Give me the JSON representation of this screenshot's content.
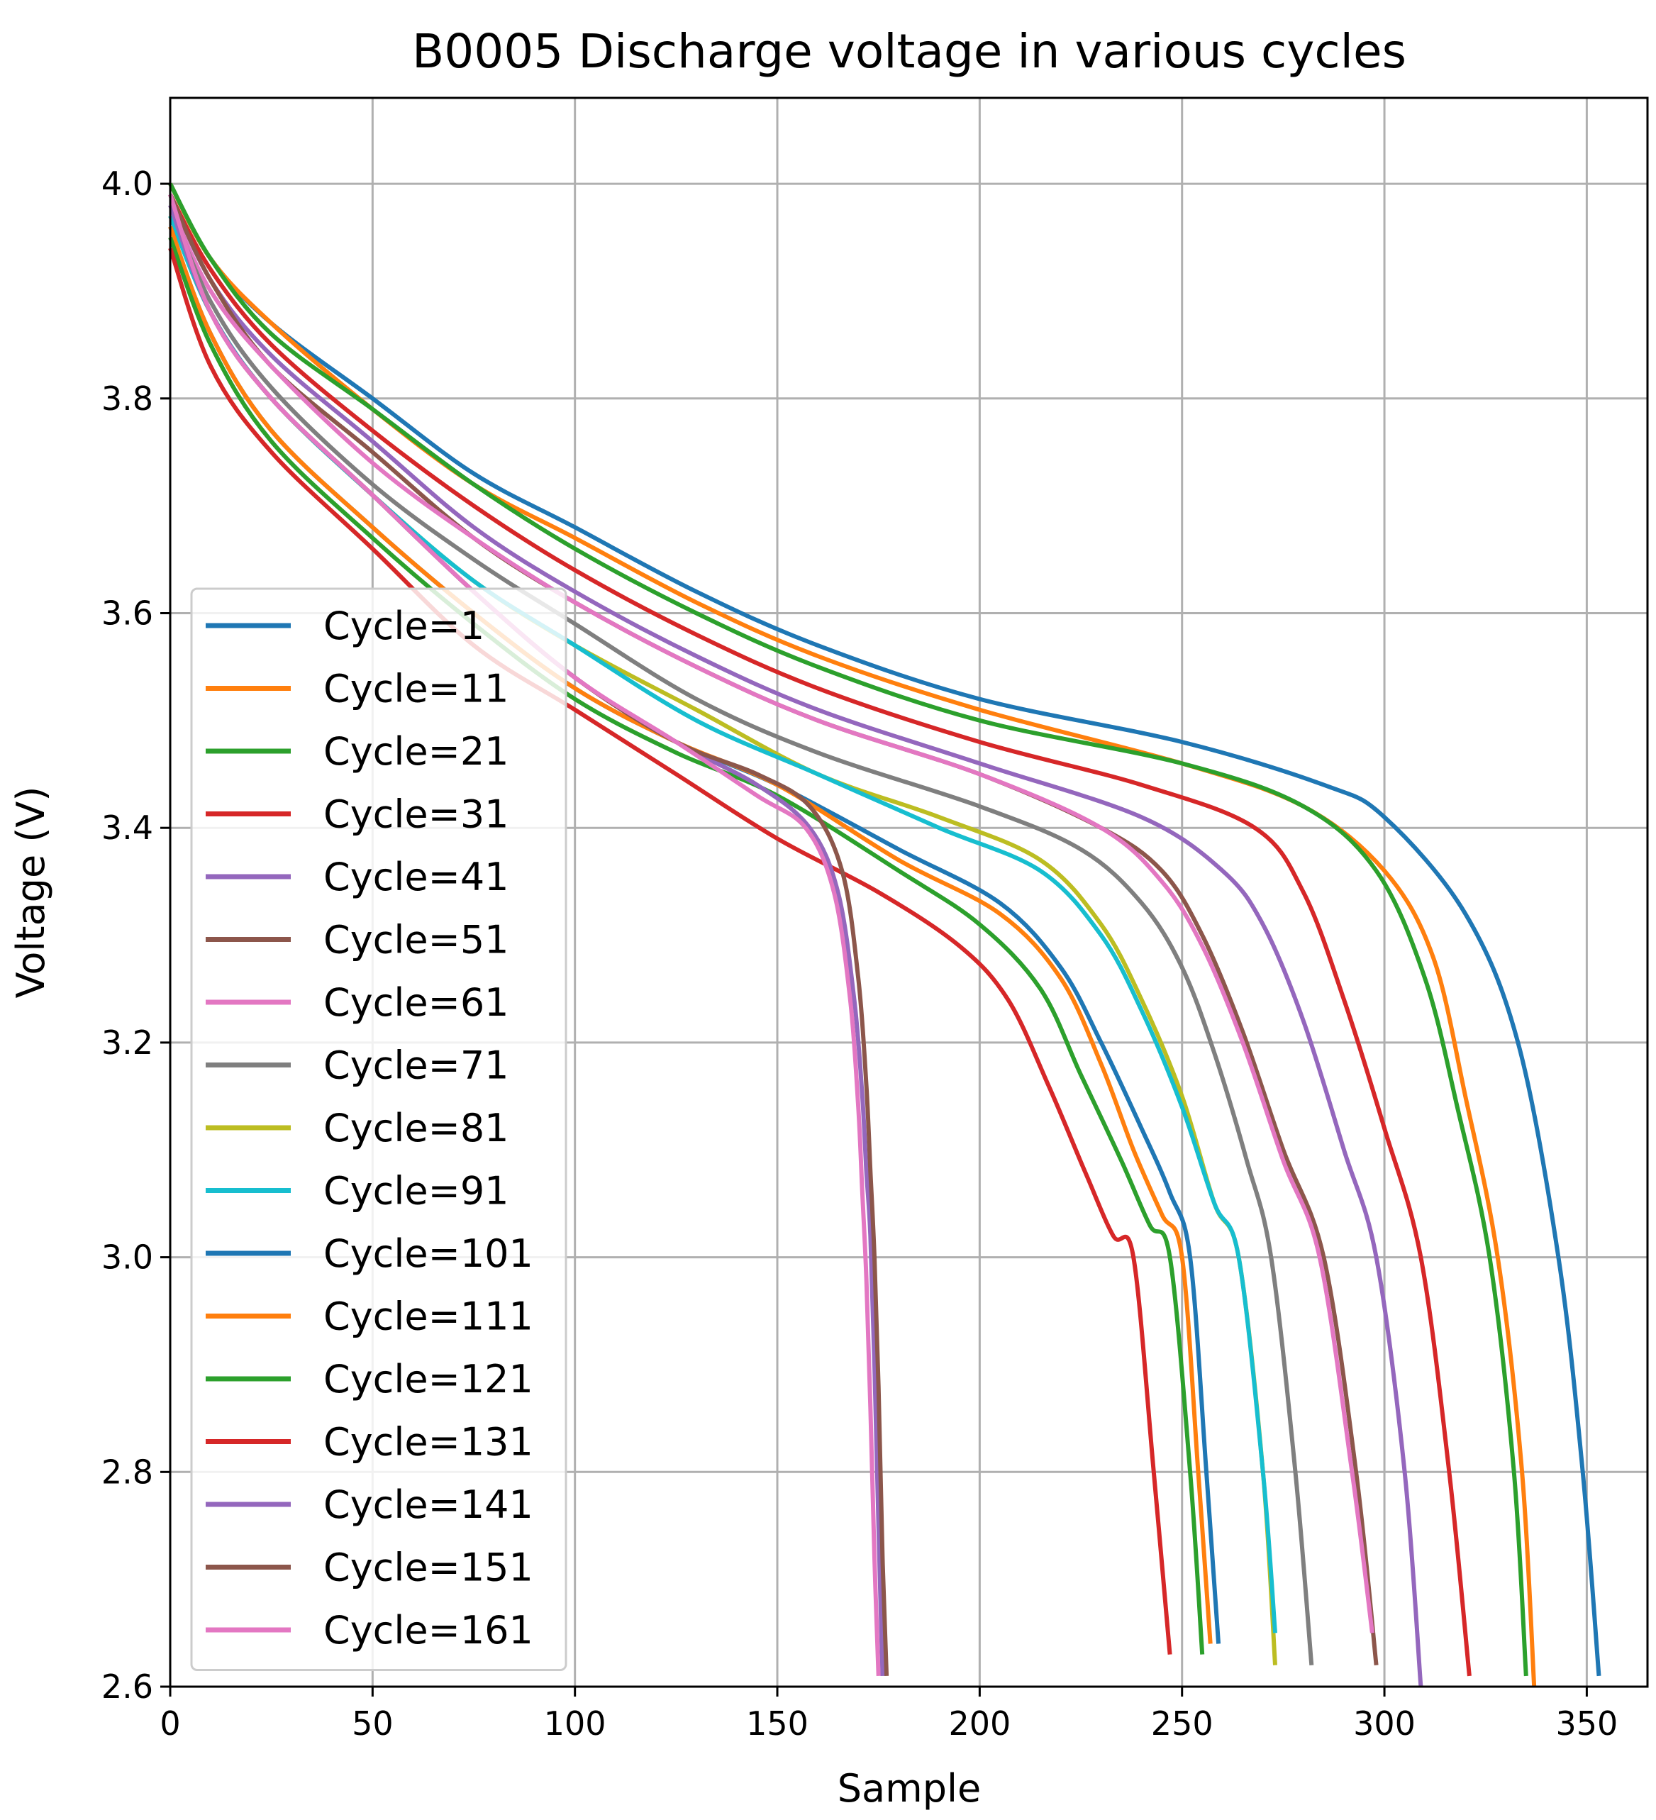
{
  "chart_data": {
    "type": "line",
    "title": "B0005 Discharge voltage in various cycles",
    "xlabel": "Sample",
    "ylabel": "Voltage (V)",
    "xlim": [
      0,
      365
    ],
    "ylim": [
      2.6,
      4.08
    ],
    "xticks": [
      0,
      50,
      100,
      150,
      200,
      250,
      300,
      350
    ],
    "yticks": [
      2.6,
      2.8,
      3.0,
      3.2,
      3.4,
      3.6,
      3.8,
      4.0
    ],
    "xtick_labels": [
      "0",
      "50",
      "100",
      "150",
      "200",
      "250",
      "300",
      "350"
    ],
    "ytick_labels": [
      "2.6",
      "2.8",
      "3.0",
      "3.2",
      "3.4",
      "3.6",
      "3.8",
      "4.0"
    ],
    "grid": true,
    "legend_position": "center-left",
    "series": [
      {
        "name": "Cycle=1",
        "color": "#1f77b4",
        "x": [
          0,
          10,
          25,
          50,
          75,
          100,
          130,
          160,
          200,
          250,
          285,
          300,
          320,
          333,
          343,
          349,
          353
        ],
        "y": [
          4.0,
          3.93,
          3.87,
          3.8,
          3.73,
          3.68,
          3.62,
          3.57,
          3.52,
          3.48,
          3.44,
          3.41,
          3.32,
          3.2,
          3.0,
          2.8,
          2.61
        ]
      },
      {
        "name": "Cycle=11",
        "color": "#ff7f0e",
        "x": [
          0,
          10,
          25,
          50,
          75,
          100,
          130,
          160,
          200,
          250,
          280,
          300,
          312,
          320,
          328,
          334,
          337
        ],
        "y": [
          4.0,
          3.93,
          3.87,
          3.79,
          3.72,
          3.67,
          3.61,
          3.56,
          3.51,
          3.46,
          3.42,
          3.36,
          3.28,
          3.15,
          3.0,
          2.8,
          2.6
        ]
      },
      {
        "name": "Cycle=21",
        "color": "#2ca02c",
        "x": [
          0,
          10,
          25,
          50,
          75,
          100,
          130,
          160,
          200,
          250,
          280,
          298,
          310,
          318,
          326,
          332,
          335
        ],
        "y": [
          4.0,
          3.93,
          3.86,
          3.79,
          3.72,
          3.66,
          3.6,
          3.55,
          3.5,
          3.46,
          3.42,
          3.36,
          3.26,
          3.14,
          3.0,
          2.8,
          2.61
        ]
      },
      {
        "name": "Cycle=31",
        "color": "#d62728",
        "x": [
          0,
          10,
          25,
          50,
          75,
          100,
          130,
          160,
          200,
          240,
          268,
          280,
          290,
          300,
          309,
          316,
          321
        ],
        "y": [
          3.99,
          3.92,
          3.85,
          3.77,
          3.7,
          3.64,
          3.58,
          3.53,
          3.48,
          3.44,
          3.4,
          3.34,
          3.24,
          3.12,
          3.0,
          2.8,
          2.61
        ]
      },
      {
        "name": "Cycle=41",
        "color": "#9467bd",
        "x": [
          0,
          10,
          25,
          50,
          75,
          100,
          130,
          160,
          200,
          240,
          260,
          270,
          280,
          290,
          298,
          305,
          309
        ],
        "y": [
          3.99,
          3.91,
          3.84,
          3.76,
          3.68,
          3.62,
          3.56,
          3.51,
          3.46,
          3.41,
          3.36,
          3.31,
          3.22,
          3.1,
          3.0,
          2.8,
          2.6
        ]
      },
      {
        "name": "Cycle=51",
        "color": "#8c564b",
        "x": [
          0,
          10,
          25,
          50,
          75,
          100,
          130,
          160,
          200,
          230,
          245,
          255,
          265,
          275,
          285,
          293,
          298
        ],
        "y": [
          3.99,
          3.91,
          3.83,
          3.75,
          3.67,
          3.61,
          3.55,
          3.5,
          3.45,
          3.4,
          3.36,
          3.3,
          3.21,
          3.1,
          3.0,
          2.8,
          2.62
        ]
      },
      {
        "name": "Cycle=61",
        "color": "#e377c2",
        "x": [
          0,
          10,
          25,
          50,
          75,
          100,
          130,
          160,
          200,
          230,
          245,
          255,
          265,
          275,
          284,
          292,
          297
        ],
        "y": [
          3.98,
          3.9,
          3.83,
          3.74,
          3.67,
          3.61,
          3.55,
          3.5,
          3.45,
          3.4,
          3.35,
          3.29,
          3.2,
          3.09,
          3.0,
          2.8,
          2.65
        ]
      },
      {
        "name": "Cycle=71",
        "color": "#7f7f7f",
        "x": [
          0,
          10,
          25,
          50,
          75,
          100,
          130,
          160,
          200,
          225,
          240,
          250,
          258,
          266,
          272,
          278,
          282
        ],
        "y": [
          3.98,
          3.89,
          3.81,
          3.72,
          3.65,
          3.59,
          3.52,
          3.47,
          3.42,
          3.38,
          3.33,
          3.27,
          3.19,
          3.09,
          3.0,
          2.8,
          2.62
        ]
      },
      {
        "name": "Cycle=81",
        "color": "#bcbd22",
        "x": [
          0,
          10,
          25,
          50,
          75,
          100,
          130,
          160,
          190,
          215,
          230,
          240,
          250,
          258,
          264,
          270,
          273
        ],
        "y": [
          3.97,
          3.88,
          3.8,
          3.71,
          3.63,
          3.57,
          3.51,
          3.45,
          3.41,
          3.37,
          3.31,
          3.24,
          3.15,
          3.05,
          3.0,
          2.8,
          2.62
        ]
      },
      {
        "name": "Cycle=91",
        "color": "#17becf",
        "x": [
          0,
          10,
          25,
          50,
          75,
          100,
          130,
          160,
          190,
          215,
          230,
          240,
          250,
          258,
          264,
          270,
          273
        ],
        "y": [
          3.97,
          3.88,
          3.8,
          3.71,
          3.63,
          3.57,
          3.5,
          3.45,
          3.4,
          3.36,
          3.3,
          3.23,
          3.14,
          3.05,
          3.0,
          2.8,
          2.65
        ]
      },
      {
        "name": "Cycle=101",
        "color": "#1f77b4",
        "x": [
          0,
          10,
          25,
          50,
          75,
          100,
          125,
          150,
          180,
          205,
          220,
          230,
          240,
          247,
          252,
          256,
          259
        ],
        "y": [
          3.96,
          3.86,
          3.77,
          3.68,
          3.6,
          3.53,
          3.48,
          3.44,
          3.38,
          3.33,
          3.27,
          3.2,
          3.12,
          3.06,
          3.0,
          2.8,
          2.64
        ]
      },
      {
        "name": "Cycle=111",
        "color": "#ff7f0e",
        "x": [
          0,
          10,
          25,
          50,
          75,
          100,
          125,
          150,
          180,
          205,
          220,
          230,
          238,
          245,
          250,
          254,
          257
        ],
        "y": [
          3.96,
          3.86,
          3.77,
          3.68,
          3.6,
          3.53,
          3.48,
          3.44,
          3.37,
          3.32,
          3.26,
          3.18,
          3.1,
          3.04,
          3.0,
          2.8,
          2.64
        ]
      },
      {
        "name": "Cycle=121",
        "color": "#2ca02c",
        "x": [
          0,
          10,
          25,
          50,
          75,
          100,
          125,
          150,
          180,
          200,
          215,
          225,
          235,
          242,
          247,
          252,
          255
        ],
        "y": [
          3.95,
          3.85,
          3.76,
          3.67,
          3.59,
          3.52,
          3.47,
          3.43,
          3.36,
          3.31,
          3.25,
          3.17,
          3.09,
          3.03,
          3.0,
          2.8,
          2.63
        ]
      },
      {
        "name": "Cycle=131",
        "color": "#d62728",
        "x": [
          0,
          10,
          25,
          50,
          75,
          100,
          125,
          150,
          175,
          195,
          207,
          217,
          226,
          233,
          238,
          243,
          247
        ],
        "y": [
          3.94,
          3.83,
          3.75,
          3.66,
          3.57,
          3.51,
          3.45,
          3.39,
          3.34,
          3.29,
          3.24,
          3.16,
          3.08,
          3.02,
          3.0,
          2.8,
          2.63
        ]
      },
      {
        "name": "Cycle=141",
        "color": "#9467bd",
        "x": [
          0,
          10,
          25,
          50,
          75,
          100,
          125,
          145,
          158,
          165,
          169,
          171,
          172,
          173,
          174,
          175,
          176
        ],
        "y": [
          3.98,
          3.88,
          3.8,
          3.71,
          3.62,
          3.54,
          3.48,
          3.44,
          3.4,
          3.34,
          3.24,
          3.15,
          3.08,
          3.02,
          2.9,
          2.75,
          2.61
        ]
      },
      {
        "name": "Cycle=151",
        "color": "#8c564b",
        "x": [
          0,
          10,
          25,
          50,
          75,
          100,
          125,
          145,
          158,
          166,
          170,
          172,
          173,
          174,
          175,
          176,
          177
        ],
        "y": [
          3.99,
          3.88,
          3.8,
          3.71,
          3.62,
          3.54,
          3.48,
          3.45,
          3.42,
          3.36,
          3.26,
          3.16,
          3.08,
          3.0,
          2.88,
          2.72,
          2.61
        ]
      },
      {
        "name": "Cycle=161",
        "color": "#e377c2",
        "x": [
          0,
          10,
          25,
          50,
          75,
          100,
          125,
          145,
          157,
          164,
          168,
          170,
          171,
          172,
          173,
          174,
          175
        ],
        "y": [
          3.99,
          3.88,
          3.8,
          3.71,
          3.62,
          3.54,
          3.48,
          3.43,
          3.4,
          3.34,
          3.24,
          3.14,
          3.06,
          2.98,
          2.86,
          2.72,
          2.61
        ]
      }
    ]
  }
}
